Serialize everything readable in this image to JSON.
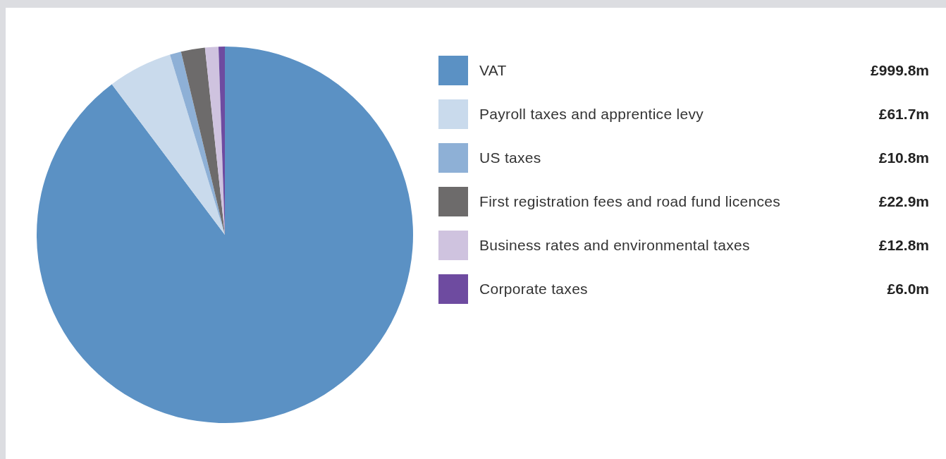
{
  "chart_data": {
    "type": "pie",
    "categories": [
      "VAT",
      "Payroll taxes and apprentice levy",
      "US taxes",
      "First registration fees and road fund licences",
      "Business rates and environmental taxes",
      "Corporate taxes"
    ],
    "values": [
      999.8,
      61.7,
      10.8,
      22.9,
      12.8,
      6.0
    ],
    "colors": [
      "#5b91c4",
      "#c9daec",
      "#8eb0d6",
      "#6d6b6b",
      "#cfc3df",
      "#6e4ba0"
    ],
    "value_labels": [
      "£999.8m",
      "£61.7m",
      "£10.8m",
      "£22.9m",
      "£12.8m",
      "£6.0m"
    ],
    "legend": "right"
  }
}
